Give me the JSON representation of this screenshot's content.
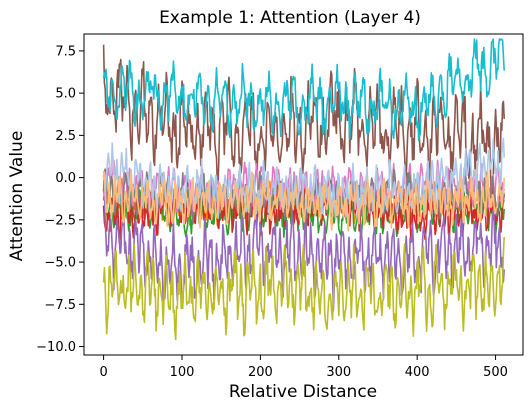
{
  "chart_data": {
    "type": "line",
    "title": "Example 1: Attention (Layer 4)",
    "xlabel": "Relative Distance",
    "ylabel": "Attention Value",
    "xlim": [
      -25,
      535
    ],
    "ylim": [
      -10.5,
      8.5
    ],
    "xticks": [
      0,
      100,
      200,
      300,
      400,
      500
    ],
    "xtick_labels": [
      "0",
      "100",
      "200",
      "300",
      "400",
      "500"
    ],
    "yticks": [
      -10,
      -7.5,
      -5,
      -2.5,
      0,
      2.5,
      5,
      7.5
    ],
    "ytick_labels": [
      "−10.0",
      "−7.5",
      "−5.0",
      "−2.5",
      "0.0",
      "2.5",
      "5.0",
      "7.5"
    ],
    "grid": false,
    "legend": "none",
    "x_range": [
      0,
      511
    ],
    "n_points": 512,
    "series": [
      {
        "color": "#ff7f0e",
        "mean": -1.5,
        "amplitude": 1.0,
        "phase": 0.2,
        "period": 7,
        "values_at_x": {
          "0": -1.2,
          "100": -1.7,
          "200": -1.4,
          "300": -1.8,
          "400": -1.3,
          "511": -1.5
        }
      },
      {
        "color": "#2ca02c",
        "mean": -2.0,
        "amplitude": 1.1,
        "phase": 1.1,
        "period": 9,
        "values_at_x": {
          "0": -1.8,
          "100": -2.3,
          "200": -1.9,
          "300": -2.4,
          "400": -2.0,
          "511": -2.1
        }
      },
      {
        "color": "#d62728",
        "mean": -1.8,
        "amplitude": 1.3,
        "phase": 2.0,
        "period": 6,
        "values_at_x": {
          "0": -2.5,
          "100": -1.5,
          "200": -2.0,
          "300": -1.4,
          "400": -2.2,
          "511": -1.8
        }
      },
      {
        "color": "#9467bd",
        "mean": -4.5,
        "amplitude": 2.2,
        "phase": 0.7,
        "period": 8,
        "values_at_x": {
          "0": -3.5,
          "100": -5.5,
          "200": -4.0,
          "300": -5.0,
          "400": -4.5,
          "511": -3.8
        }
      },
      {
        "color": "#8c564b",
        "mean": 3.2,
        "amplitude": 2.6,
        "phase": 1.5,
        "period": 10,
        "values_at_x": {
          "0": 5.0,
          "100": 3.0,
          "200": 2.5,
          "300": 3.5,
          "400": 2.8,
          "511": 2.0
        }
      },
      {
        "color": "#e377c2",
        "mean": -0.5,
        "amplitude": 1.2,
        "phase": 2.6,
        "period": 7,
        "values_at_x": {
          "0": -0.3,
          "100": -0.8,
          "200": -0.4,
          "300": -0.7,
          "400": -0.5,
          "511": -0.6
        }
      },
      {
        "color": "#7f7f7f",
        "mean": -1.0,
        "amplitude": 1.2,
        "phase": 0.4,
        "period": 9,
        "values_at_x": {
          "0": -0.8,
          "100": -1.2,
          "200": -1.0,
          "300": -1.1,
          "400": -0.9,
          "511": -1.0
        }
      },
      {
        "color": "#bcbd22",
        "mean": -6.6,
        "amplitude": 2.2,
        "phase": 1.9,
        "period": 8,
        "values_at_x": {
          "0": -6.5,
          "100": -7.0,
          "200": -6.5,
          "300": -6.8,
          "400": -6.6,
          "511": -6.2
        }
      },
      {
        "color": "#17becf",
        "mean": 4.5,
        "amplitude": 1.8,
        "phase": 0.9,
        "period": 11,
        "values_at_x": {
          "0": 5.0,
          "100": 4.8,
          "200": 4.3,
          "300": 4.5,
          "400": 4.2,
          "511": 7.2
        }
      },
      {
        "color": "#aec7e8",
        "mean": -0.5,
        "amplitude": 1.5,
        "phase": 2.3,
        "period": 6,
        "values_at_x": {
          "0": 0.5,
          "100": -0.8,
          "200": -0.6,
          "300": -0.9,
          "400": -0.7,
          "511": 1.0
        }
      },
      {
        "color": "#ffbb78",
        "mean": -1.4,
        "amplitude": 1.3,
        "phase": 1.2,
        "period": 7,
        "values_at_x": {
          "0": -1.0,
          "100": -1.5,
          "200": -1.3,
          "300": -1.6,
          "400": -1.4,
          "511": -1.2
        }
      }
    ]
  }
}
